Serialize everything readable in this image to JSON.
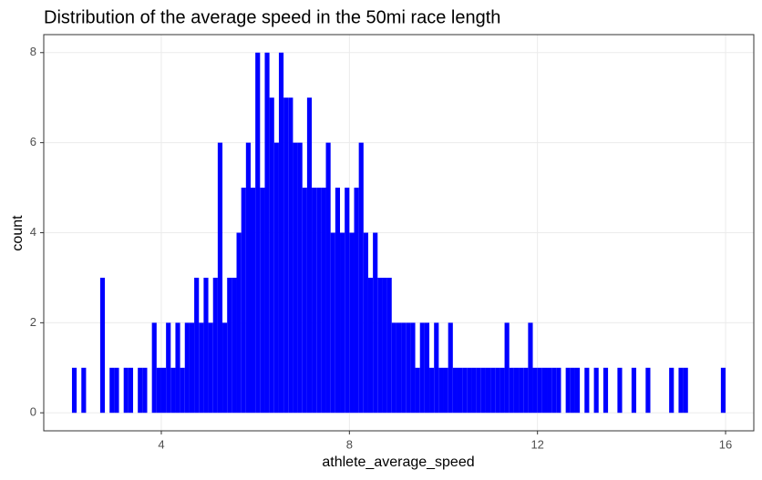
{
  "chart_data": {
    "type": "histogram",
    "title": "Distribution of the average speed in the 50mi race length",
    "x_label": "athlete_average_speed",
    "y_label": "count",
    "color": "#0000ff",
    "grid": true,
    "xlim": [
      1.5,
      16.6
    ],
    "ylim": [
      -0.4,
      8.4
    ],
    "xticks": [
      4,
      8,
      12,
      16
    ],
    "yticks": [
      0,
      2,
      4,
      6,
      8
    ],
    "bins": [
      2,
      2.1,
      2.2,
      2.3,
      2.4,
      2.5,
      2.6,
      2.7,
      2.8,
      2.9,
      3,
      3.1,
      3.2,
      3.3,
      3.4,
      3.5,
      3.6,
      3.7,
      3.8,
      3.9,
      4,
      4.1,
      4.2,
      4.3,
      4.4,
      4.5,
      4.6,
      4.7,
      4.8,
      4.9,
      5,
      5.1,
      5.2,
      5.3,
      5.4,
      5.5,
      5.6,
      5.7,
      5.8,
      5.9,
      6,
      6.1,
      6.2,
      6.3,
      6.4,
      6.5,
      6.6,
      6.7,
      6.8,
      6.9,
      7,
      7.1,
      7.2,
      7.3,
      7.4,
      7.5,
      7.6,
      7.7,
      7.8,
      7.9,
      8,
      8.1,
      8.2,
      8.3,
      8.4,
      8.5,
      8.6,
      8.7,
      8.8,
      8.9,
      9,
      9.1,
      9.2,
      9.3,
      9.4,
      9.5,
      9.6,
      9.7,
      9.8,
      9.9,
      10,
      10.1,
      10.2,
      10.3,
      10.4,
      10.5,
      10.6,
      10.7,
      10.8,
      10.9,
      11,
      11.1,
      11.2,
      11.3,
      11.4,
      11.5,
      11.6,
      11.7,
      11.8,
      11.9,
      12,
      12.1,
      12.2,
      12.3,
      12.4,
      12.5,
      12.6,
      12.7,
      12.8,
      12.9,
      13,
      13.1,
      13.2,
      13.3,
      13.4,
      13.5,
      13.6,
      13.7,
      13.8,
      13.9,
      14,
      14.1,
      14.2,
      14.3,
      14.4,
      14.5,
      14.6,
      14.7,
      14.8,
      14.9,
      15,
      15.1,
      15.2,
      15.3,
      15.4,
      15.5,
      15.6,
      15.7,
      15.8,
      15.9,
      16
    ],
    "values": [
      0,
      1,
      0,
      1,
      0,
      0,
      0,
      3,
      0,
      1,
      1,
      0,
      1,
      1,
      0,
      1,
      1,
      0,
      2,
      1,
      1,
      2,
      1,
      2,
      1,
      2,
      2,
      3,
      2,
      3,
      2,
      3,
      6,
      2,
      3,
      3,
      4,
      5,
      6,
      5,
      8,
      5,
      8,
      7,
      6,
      8,
      7,
      7,
      6,
      6,
      5,
      7,
      5,
      5,
      5,
      6,
      4,
      5,
      4,
      5,
      4,
      5,
      6,
      4,
      3,
      4,
      3,
      3,
      3,
      2,
      2,
      2,
      2,
      2,
      1,
      2,
      2,
      1,
      2,
      1,
      1,
      2,
      1,
      1,
      1,
      1,
      1,
      1,
      1,
      1,
      1,
      1,
      1,
      2,
      1,
      1,
      1,
      1,
      2,
      1,
      1,
      1,
      1,
      1,
      1,
      0,
      1,
      1,
      1,
      0,
      1,
      0,
      1,
      0,
      1,
      0,
      0,
      1,
      0,
      0,
      1,
      0,
      0,
      1,
      0,
      0,
      0,
      0,
      1,
      0,
      1,
      1,
      0,
      0,
      0,
      0,
      0,
      0,
      0,
      1
    ]
  }
}
